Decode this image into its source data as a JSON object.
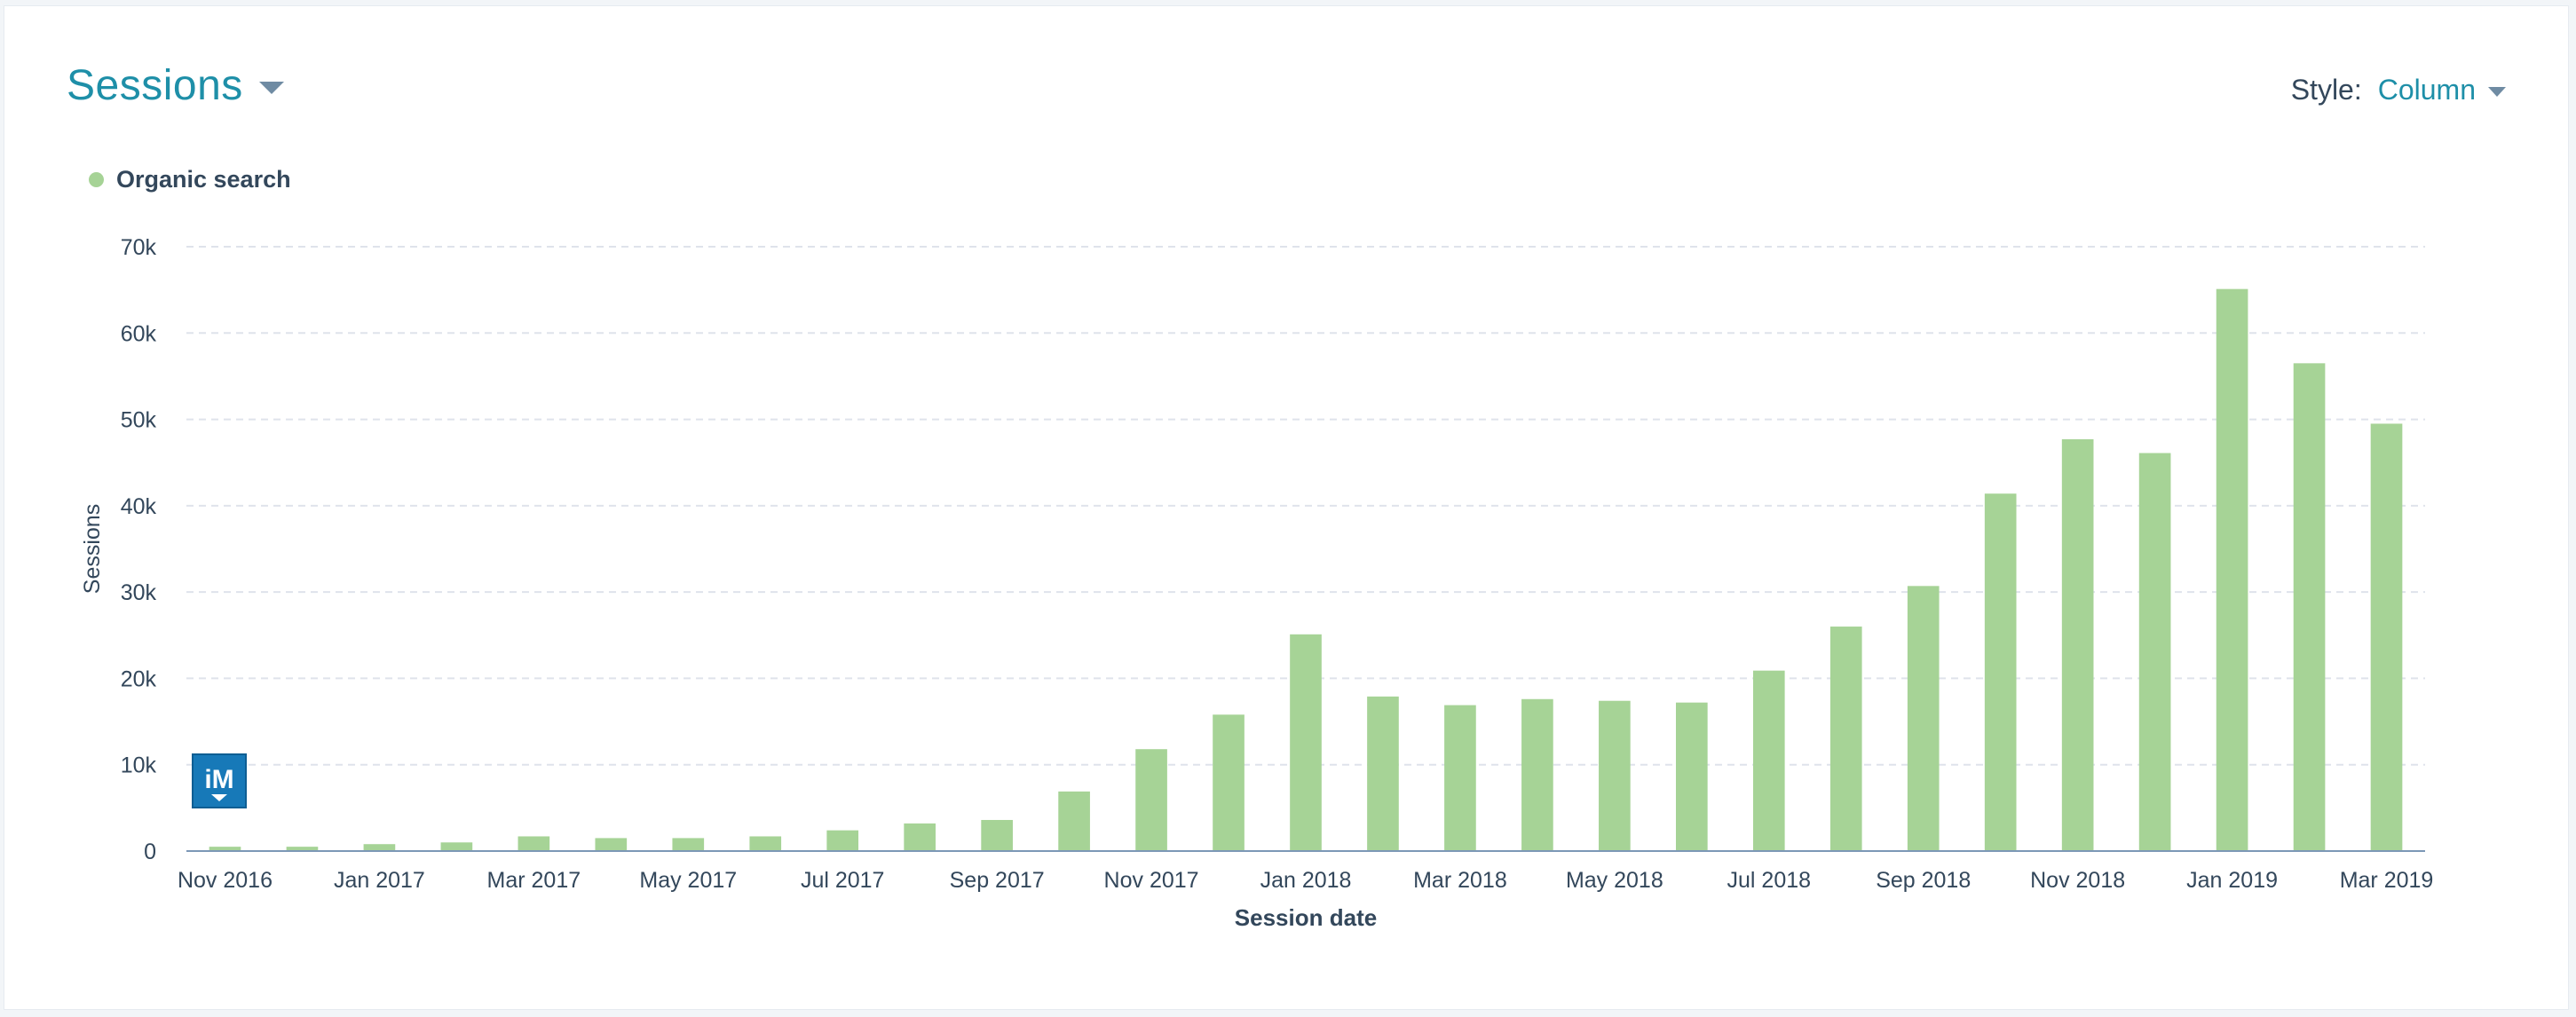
{
  "header": {
    "title": "Sessions"
  },
  "style_control": {
    "label": "Style:",
    "value": "Column"
  },
  "colors": {
    "accent": "#1e8fa8",
    "bar": "#a6d396",
    "axis": "#33475b",
    "grid": "#dfe3eb"
  },
  "chart_data": {
    "type": "bar",
    "xlabel": "Session date",
    "ylabel": "Sessions",
    "ylim": [
      0,
      70000
    ],
    "yticks": [
      0,
      10000,
      20000,
      30000,
      40000,
      50000,
      60000,
      70000
    ],
    "ytick_labels": [
      "0",
      "10k",
      "20k",
      "30k",
      "40k",
      "50k",
      "60k",
      "70k"
    ],
    "grid": true,
    "legend_position": "top-left",
    "categories": [
      "Nov 2016",
      "Dec 2016",
      "Jan 2017",
      "Feb 2017",
      "Mar 2017",
      "Apr 2017",
      "May 2017",
      "Jun 2017",
      "Jul 2017",
      "Aug 2017",
      "Sep 2017",
      "Oct 2017",
      "Nov 2017",
      "Dec 2017",
      "Jan 2018",
      "Feb 2018",
      "Mar 2018",
      "Apr 2018",
      "May 2018",
      "Jun 2018",
      "Jul 2018",
      "Aug 2018",
      "Sep 2018",
      "Oct 2018",
      "Nov 2018",
      "Dec 2018",
      "Jan 2019",
      "Feb 2019",
      "Mar 2019"
    ],
    "xtick_labels": [
      "Nov 2016",
      "",
      "Jan 2017",
      "",
      "Mar 2017",
      "",
      "May 2017",
      "",
      "Jul 2017",
      "",
      "Sep 2017",
      "",
      "Nov 2017",
      "",
      "Jan 2018",
      "",
      "Mar 2018",
      "",
      "May 2018",
      "",
      "Jul 2018",
      "",
      "Sep 2018",
      "",
      "Nov 2018",
      "",
      "Jan 2019",
      "",
      "Mar 2019"
    ],
    "series": [
      {
        "name": "Organic search",
        "values": [
          500,
          500,
          800,
          1000,
          1700,
          1500,
          1500,
          1700,
          2400,
          3200,
          3600,
          6900,
          11800,
          15800,
          25100,
          17900,
          16900,
          17600,
          17400,
          17200,
          20900,
          26000,
          30700,
          41400,
          47700,
          46100,
          65100,
          56500,
          49500
        ]
      }
    ]
  }
}
